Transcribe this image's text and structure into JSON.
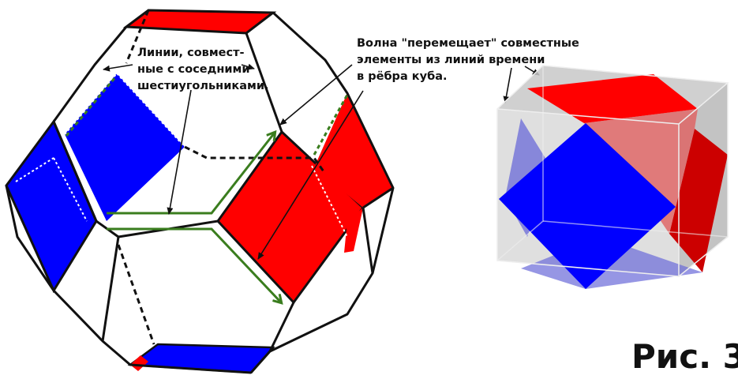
{
  "labels": {
    "left_note": [
      "Линии, совмест-",
      "ные с соседними",
      "шестиугольниками."
    ],
    "right_note": [
      "Волна \"перемещает\" совместные",
      "элементы из линий времени",
      "в рёбра куба."
    ]
  },
  "figure_number": "Рис. 3",
  "colors": {
    "red": "#ff0000",
    "blue": "#0000ff",
    "green_arrow": "#3a7d1e",
    "edge": "#111111",
    "cube_face": "#c8c8c8"
  }
}
